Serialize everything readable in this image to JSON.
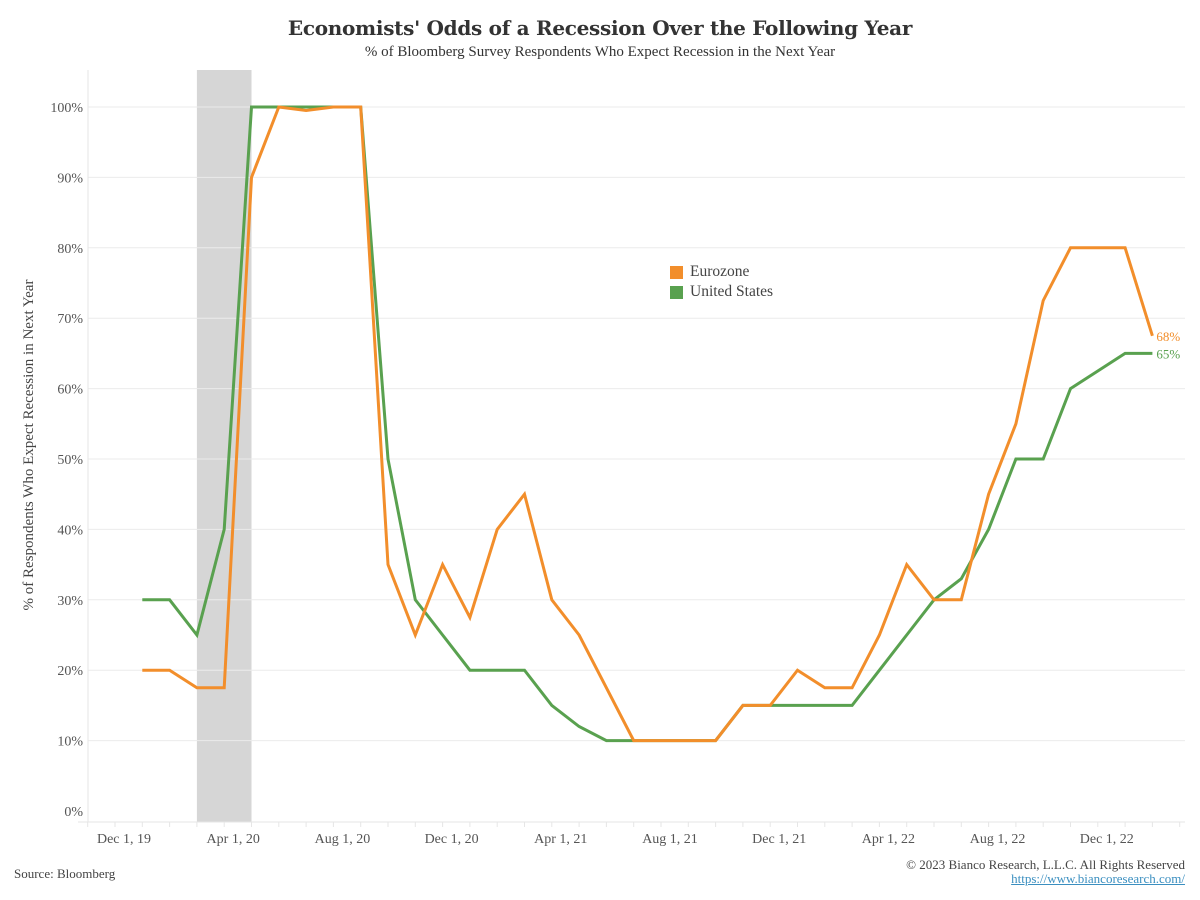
{
  "chart_data": {
    "type": "line",
    "title": "Economists' Odds of a Recession Over the Following Year",
    "subtitle": "% of Bloomberg Survey Respondents Who Expect Recession in the Next Year",
    "xlabel": "",
    "ylabel": "% of Respondents Who Expect Recession in Next Year",
    "ylim": [
      0,
      100
    ],
    "yticks": [
      0,
      10,
      20,
      30,
      40,
      50,
      60,
      70,
      80,
      90,
      100
    ],
    "ytick_labels": [
      "0%",
      "10%",
      "20%",
      "30%",
      "40%",
      "50%",
      "60%",
      "70%",
      "80%",
      "90%",
      "100%"
    ],
    "xlim_months": [
      "2019-11",
      "2023-03"
    ],
    "xtick_labels": [
      {
        "label": "Dec 1, 19",
        "date": "2019-12"
      },
      {
        "label": "Apr 1, 20",
        "date": "2020-04"
      },
      {
        "label": "Aug 1, 20",
        "date": "2020-08"
      },
      {
        "label": "Dec 1, 20",
        "date": "2020-12"
      },
      {
        "label": "Apr 1, 21",
        "date": "2021-04"
      },
      {
        "label": "Aug 1, 21",
        "date": "2021-08"
      },
      {
        "label": "Dec 1, 21",
        "date": "2021-12"
      },
      {
        "label": "Apr 1, 22",
        "date": "2022-04"
      },
      {
        "label": "Aug 1, 22",
        "date": "2022-08"
      },
      {
        "label": "Dec 1, 22",
        "date": "2022-12"
      }
    ],
    "recession_shading": {
      "start": "2020-03",
      "end": "2020-05",
      "color": "#d6d6d6"
    },
    "x": [
      "2020-01",
      "2020-02",
      "2020-03",
      "2020-04",
      "2020-05",
      "2020-06",
      "2020-07",
      "2020-08",
      "2020-09",
      "2020-10",
      "2020-11",
      "2020-12",
      "2021-01",
      "2021-02",
      "2021-03",
      "2021-04",
      "2021-05",
      "2021-06",
      "2021-07",
      "2021-08",
      "2021-09",
      "2021-10",
      "2021-11",
      "2021-12",
      "2022-01",
      "2022-02",
      "2022-03",
      "2022-04",
      "2022-05",
      "2022-06",
      "2022-07",
      "2022-08",
      "2022-09",
      "2022-10",
      "2022-11",
      "2022-12",
      "2023-01",
      "2023-02"
    ],
    "series": [
      {
        "name": "Eurozone",
        "color": "#f28e2b",
        "end_label": "68%",
        "values": [
          20,
          20,
          17.5,
          17.5,
          90,
          100,
          99.5,
          100,
          100,
          35,
          25,
          35,
          27.5,
          40,
          45,
          30,
          25,
          17.5,
          10,
          10,
          10,
          10,
          15,
          15,
          20,
          17.5,
          17.5,
          25,
          35,
          30,
          30,
          45,
          55,
          72.5,
          80,
          80,
          80,
          67.5
        ]
      },
      {
        "name": "United States",
        "color": "#59a14f",
        "end_label": "65%",
        "values": [
          30,
          30,
          25,
          40,
          100,
          100,
          100,
          100,
          100,
          50,
          30,
          25,
          20,
          20,
          20,
          15,
          12,
          10,
          10,
          10,
          10,
          10,
          15,
          15,
          15,
          15,
          15,
          20,
          25,
          30,
          33,
          40,
          50,
          50,
          60,
          62.5,
          65,
          65
        ]
      }
    ],
    "legend": {
      "placement": "center-right",
      "entries": [
        "Eurozone",
        "United States"
      ]
    },
    "grid": true
  },
  "footer": {
    "source": "Source: Bloomberg",
    "copyright": "© 2023 Bianco Research, L.L.C. All Rights Reserved",
    "url": "https://www.biancoresearch.com/"
  }
}
